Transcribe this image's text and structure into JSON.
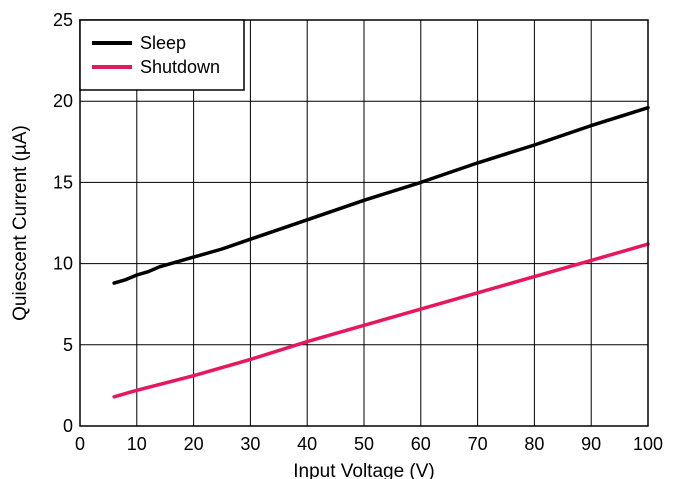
{
  "chart_data": {
    "type": "line",
    "xlabel": "Input Voltage (V)",
    "ylabel": "Quiescent Current (µA)",
    "xlim": [
      0,
      100
    ],
    "ylim": [
      0,
      25
    ],
    "xticks": [
      "0",
      "10",
      "20",
      "30",
      "40",
      "50",
      "60",
      "70",
      "80",
      "90",
      "100"
    ],
    "yticks": [
      "0",
      "5",
      "10",
      "15",
      "20",
      "25"
    ],
    "grid": true,
    "legend_position": "top-left",
    "series": [
      {
        "name": "Sleep",
        "color": "#000000",
        "x": [
          6,
          8,
          10,
          12,
          14,
          16,
          20,
          25,
          30,
          40,
          50,
          60,
          70,
          80,
          90,
          100
        ],
        "y": [
          8.8,
          9.0,
          9.3,
          9.5,
          9.8,
          10.0,
          10.4,
          10.9,
          11.5,
          12.7,
          13.9,
          15.0,
          16.2,
          17.3,
          18.5,
          19.6
        ]
      },
      {
        "name": "Shutdown",
        "color": "#e8175d",
        "x": [
          6,
          10,
          20,
          30,
          40,
          50,
          60,
          70,
          80,
          90,
          100
        ],
        "y": [
          1.8,
          2.2,
          3.1,
          4.1,
          5.2,
          6.2,
          7.2,
          8.2,
          9.2,
          10.2,
          11.2
        ]
      }
    ]
  }
}
